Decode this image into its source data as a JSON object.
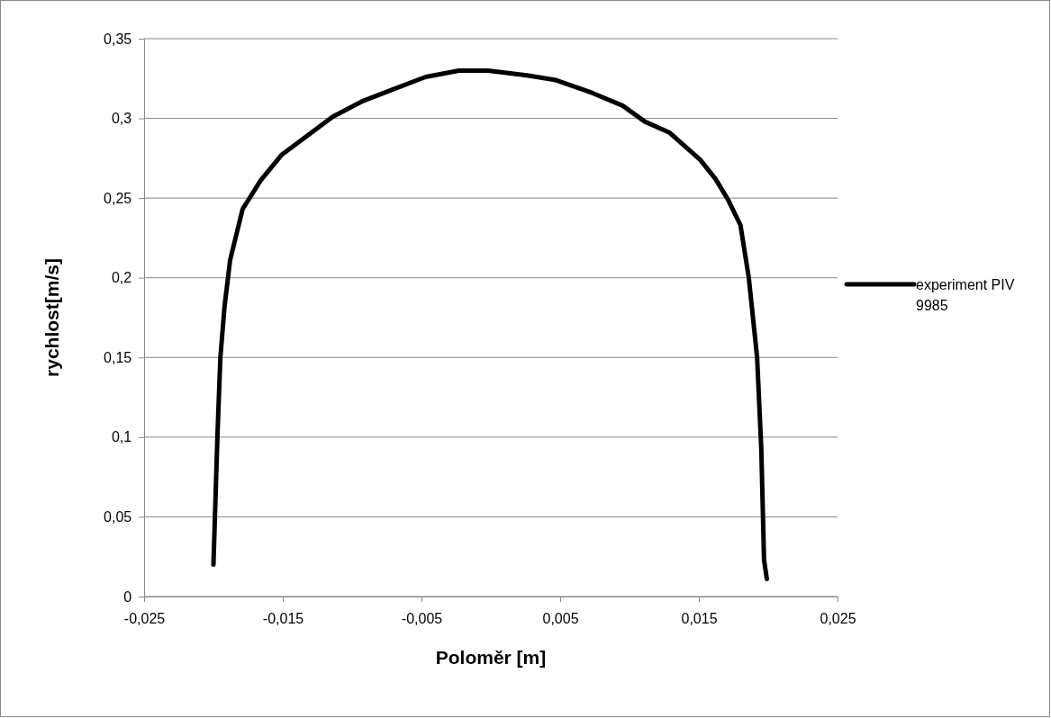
{
  "chart_data": {
    "type": "line",
    "xlabel": "Poloměr [m]",
    "ylabel": "rychlost[m/s]",
    "xlim": [
      -0.025,
      0.025
    ],
    "xticks": [
      {
        "value": -0.025,
        "label": "-0,025"
      },
      {
        "value": -0.015,
        "label": "-0,015"
      },
      {
        "value": -0.005,
        "label": "-0,005"
      },
      {
        "value": 0.005,
        "label": "0,005"
      },
      {
        "value": 0.015,
        "label": "0,015"
      },
      {
        "value": 0.025,
        "label": "0,025"
      }
    ],
    "ylim": [
      0,
      0.35
    ],
    "yticks": [
      {
        "value": 0,
        "label": "0"
      },
      {
        "value": 0.05,
        "label": "0,05"
      },
      {
        "value": 0.1,
        "label": "0,1"
      },
      {
        "value": 0.15,
        "label": "0,15"
      },
      {
        "value": 0.2,
        "label": "0,2"
      },
      {
        "value": 0.25,
        "label": "0,25"
      },
      {
        "value": 0.3,
        "label": "0,3"
      },
      {
        "value": 0.35,
        "label": "0,35"
      }
    ],
    "grid": "y",
    "legend": "right",
    "marker": "none",
    "line_style": "solid",
    "series": [
      {
        "name": "experiment PIV 9985",
        "color": "#000000",
        "x": [
          -0.02,
          -0.0197,
          -0.0195,
          -0.0192,
          -0.0188,
          -0.0179,
          -0.0166,
          -0.0151,
          -0.0134,
          -0.0114,
          -0.0092,
          -0.0071,
          -0.0047,
          -0.0023,
          -0.0002,
          0.0026,
          0.0047,
          0.0073,
          0.0095,
          0.0111,
          0.0129,
          0.0151,
          0.0162,
          0.0171,
          0.018,
          0.0186,
          0.0192,
          0.0195,
          0.0197,
          0.0199
        ],
        "values": [
          0.02,
          0.104,
          0.15,
          0.182,
          0.211,
          0.243,
          0.261,
          0.277,
          0.288,
          0.301,
          0.311,
          0.318,
          0.326,
          0.33,
          0.33,
          0.327,
          0.324,
          0.316,
          0.308,
          0.298,
          0.291,
          0.274,
          0.262,
          0.249,
          0.233,
          0.2,
          0.15,
          0.093,
          0.023,
          0.011
        ]
      }
    ]
  }
}
